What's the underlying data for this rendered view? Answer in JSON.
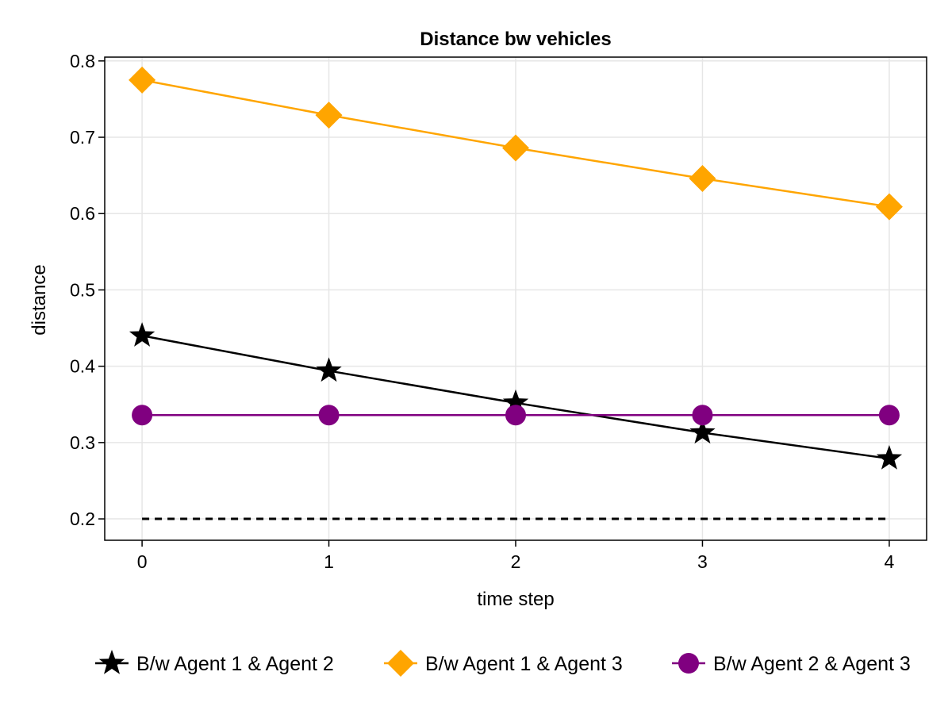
{
  "chart_data": {
    "type": "line",
    "title": "Distance bw vehicles",
    "xlabel": "time step",
    "ylabel": "distance",
    "x": [
      0,
      1,
      2,
      3,
      4
    ],
    "xticks": [
      "0",
      "1",
      "2",
      "3",
      "4"
    ],
    "yticks": [
      "0.2",
      "0.3",
      "0.4",
      "0.5",
      "0.6",
      "0.7",
      "0.8"
    ],
    "xlim": [
      -0.2,
      4.2
    ],
    "ylim": [
      0.172,
      0.805
    ],
    "grid": true,
    "legend_position": "bottom",
    "series": [
      {
        "name": "B/w Agent 1 & Agent 2",
        "values": [
          0.44,
          0.394,
          0.352,
          0.313,
          0.279
        ],
        "color": "#000000",
        "marker": "star",
        "line_style": "solid"
      },
      {
        "name": "B/w Agent 1 & Agent 3",
        "values": [
          0.775,
          0.729,
          0.686,
          0.646,
          0.609
        ],
        "color": "#ffa500",
        "marker": "diamond",
        "line_style": "solid"
      },
      {
        "name": "B/w Agent 2 & Agent 3",
        "values": [
          0.336,
          0.336,
          0.336,
          0.336,
          0.336
        ],
        "color": "#800080",
        "marker": "circle",
        "line_style": "solid"
      }
    ],
    "threshold": {
      "values": [
        0.2,
        0.2,
        0.2,
        0.2,
        0.2
      ],
      "color": "#000000",
      "line_style": "dashed"
    }
  }
}
